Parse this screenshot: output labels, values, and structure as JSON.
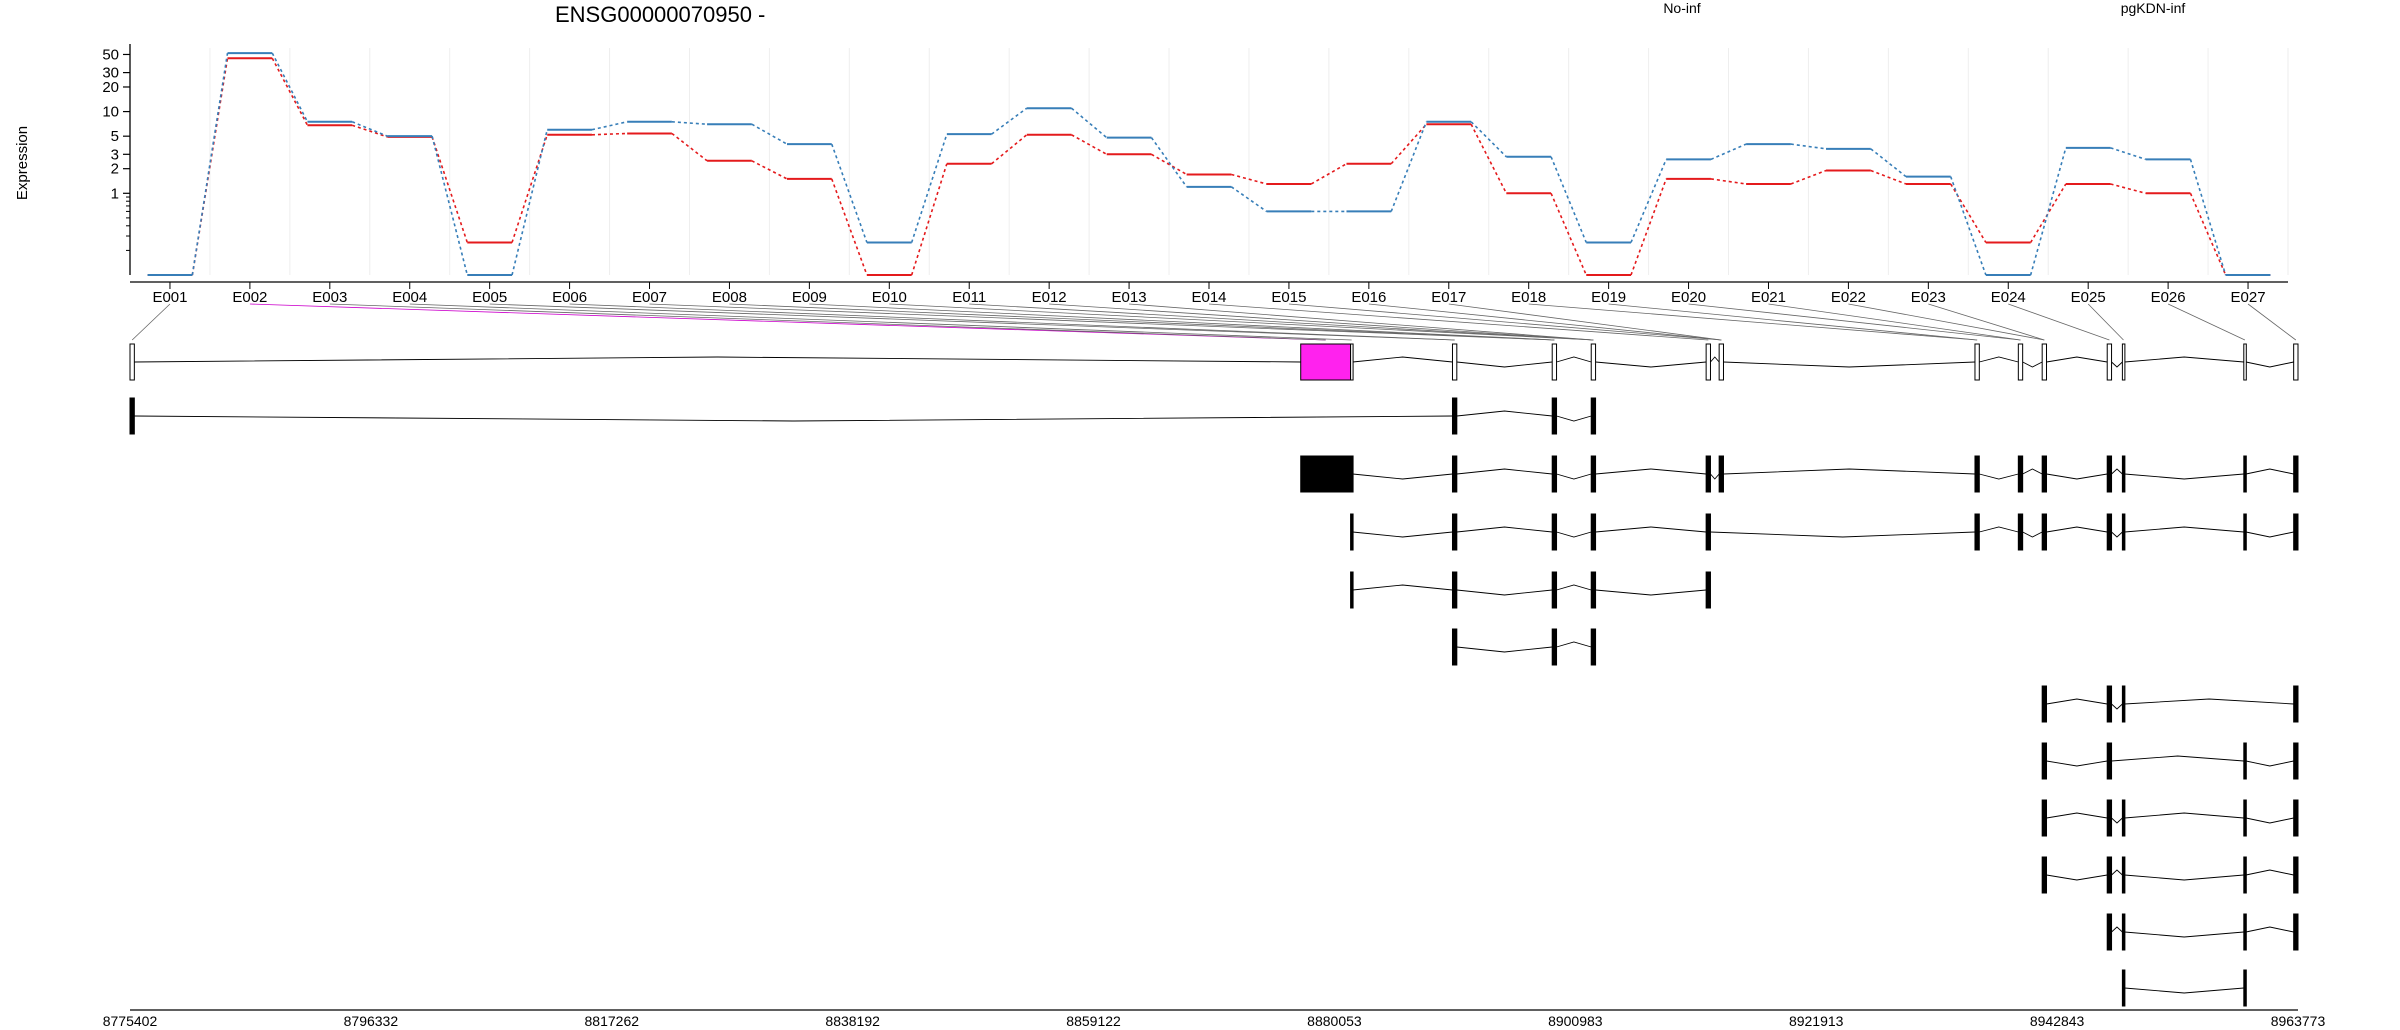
{
  "chart_data": {
    "type": "line",
    "title": "ENSG00000070950 -",
    "ylabel": "Expression",
    "yscale": "log",
    "y_ticks": [
      "50",
      "30",
      "20",
      "10",
      "5",
      "3",
      "2",
      "1"
    ],
    "categories": [
      "E001",
      "E002",
      "E003",
      "E004",
      "E005",
      "E006",
      "E007",
      "E008",
      "E009",
      "E010",
      "E011",
      "E012",
      "E013",
      "E014",
      "E015",
      "E016",
      "E017",
      "E018",
      "E019",
      "E020",
      "E021",
      "E022",
      "E023",
      "E024",
      "E025",
      "E026",
      "E027"
    ],
    "series": [
      {
        "name": "No-inf",
        "color": "#e41a1c",
        "values": [
          0.1,
          45,
          6.8,
          4.9,
          0.25,
          5.2,
          5.4,
          2.5,
          1.5,
          0.1,
          2.3,
          5.2,
          3.0,
          1.7,
          1.3,
          2.3,
          7.0,
          1.0,
          0.1,
          1.5,
          1.3,
          1.9,
          1.3,
          0.25,
          1.3,
          1.0,
          0.1
        ]
      },
      {
        "name": "pgKDN-inf",
        "color": "#377eb8",
        "values": [
          0.1,
          52,
          7.5,
          5.0,
          0.1,
          6.0,
          7.5,
          7.0,
          4.0,
          0.25,
          5.3,
          11,
          4.8,
          1.2,
          0.6,
          0.6,
          7.5,
          2.8,
          0.25,
          2.6,
          4.0,
          3.5,
          1.6,
          0.1,
          3.6,
          2.6,
          0.1
        ]
      }
    ],
    "genome_axis_ticks": [
      "8775402",
      "8796332",
      "8817262",
      "8838192",
      "8859122",
      "8880053",
      "8900983",
      "8921913",
      "8942843",
      "8963773"
    ]
  }
}
